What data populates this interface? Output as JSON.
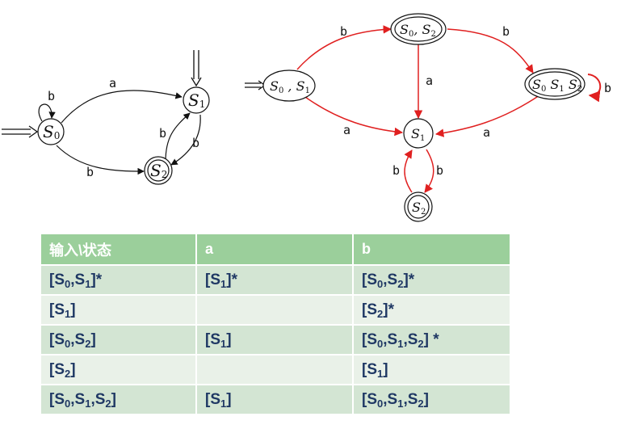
{
  "left_nfa": {
    "states": [
      {
        "id": "S0",
        "base": "S",
        "sub": "0"
      },
      {
        "id": "S1",
        "base": "S",
        "sub": "1"
      },
      {
        "id": "S2",
        "base": "S",
        "sub": "2"
      }
    ],
    "start_states": [
      "S0",
      "S1"
    ],
    "accept_states": [
      "S2"
    ],
    "transitions": [
      {
        "from": "S0",
        "to": "S0",
        "label": "b"
      },
      {
        "from": "S0",
        "to": "S1",
        "label": "a"
      },
      {
        "from": "S0",
        "to": "S2",
        "label": "b"
      },
      {
        "from": "S2",
        "to": "S1",
        "label": "b"
      },
      {
        "from": "S1",
        "to": "S2",
        "label": "b"
      }
    ]
  },
  "right_dfa": {
    "states": [
      {
        "id": "S0S1",
        "label": "S0, S1",
        "start": true,
        "accept": false
      },
      {
        "id": "S0S2",
        "label": "S0, S2",
        "start": false,
        "accept": true
      },
      {
        "id": "S0S1S2",
        "label": "S0 S1 S2",
        "start": false,
        "accept": true
      },
      {
        "id": "S1",
        "label": "S1",
        "start": false,
        "accept": false
      },
      {
        "id": "S2",
        "label": "S2",
        "start": false,
        "accept": true
      }
    ],
    "transitions": [
      {
        "from": "S0S1",
        "to": "S0S2",
        "label": "b"
      },
      {
        "from": "S0S1",
        "to": "S1",
        "label": "a"
      },
      {
        "from": "S0S2",
        "to": "S1",
        "label": "a"
      },
      {
        "from": "S0S2",
        "to": "S0S1S2",
        "label": "b"
      },
      {
        "from": "S0S1S2",
        "to": "S0S1S2",
        "label": "b"
      },
      {
        "from": "S0S1S2",
        "to": "S1",
        "label": "a"
      },
      {
        "from": "S1",
        "to": "S2",
        "label": "b"
      },
      {
        "from": "S2",
        "to": "S1",
        "label": "b"
      }
    ],
    "edge_color": "#e02020"
  },
  "table": {
    "headers": [
      "输入\\状态",
      "a",
      "b"
    ],
    "rows": [
      [
        "[S0,S1]*",
        "[S1]*",
        "[S0,S2]*"
      ],
      [
        "[S1]",
        "",
        "[S2]*"
      ],
      [
        "[S0,S2]",
        "[S1]",
        "[S0,S1,S2] *"
      ],
      [
        "[S2]",
        "",
        "[S1]"
      ],
      [
        "[S0,S1,S2]",
        "[S1]",
        "[S0,S1,S2]"
      ]
    ],
    "header_color": "#9bcf9b",
    "text_color": "#1f3864"
  }
}
